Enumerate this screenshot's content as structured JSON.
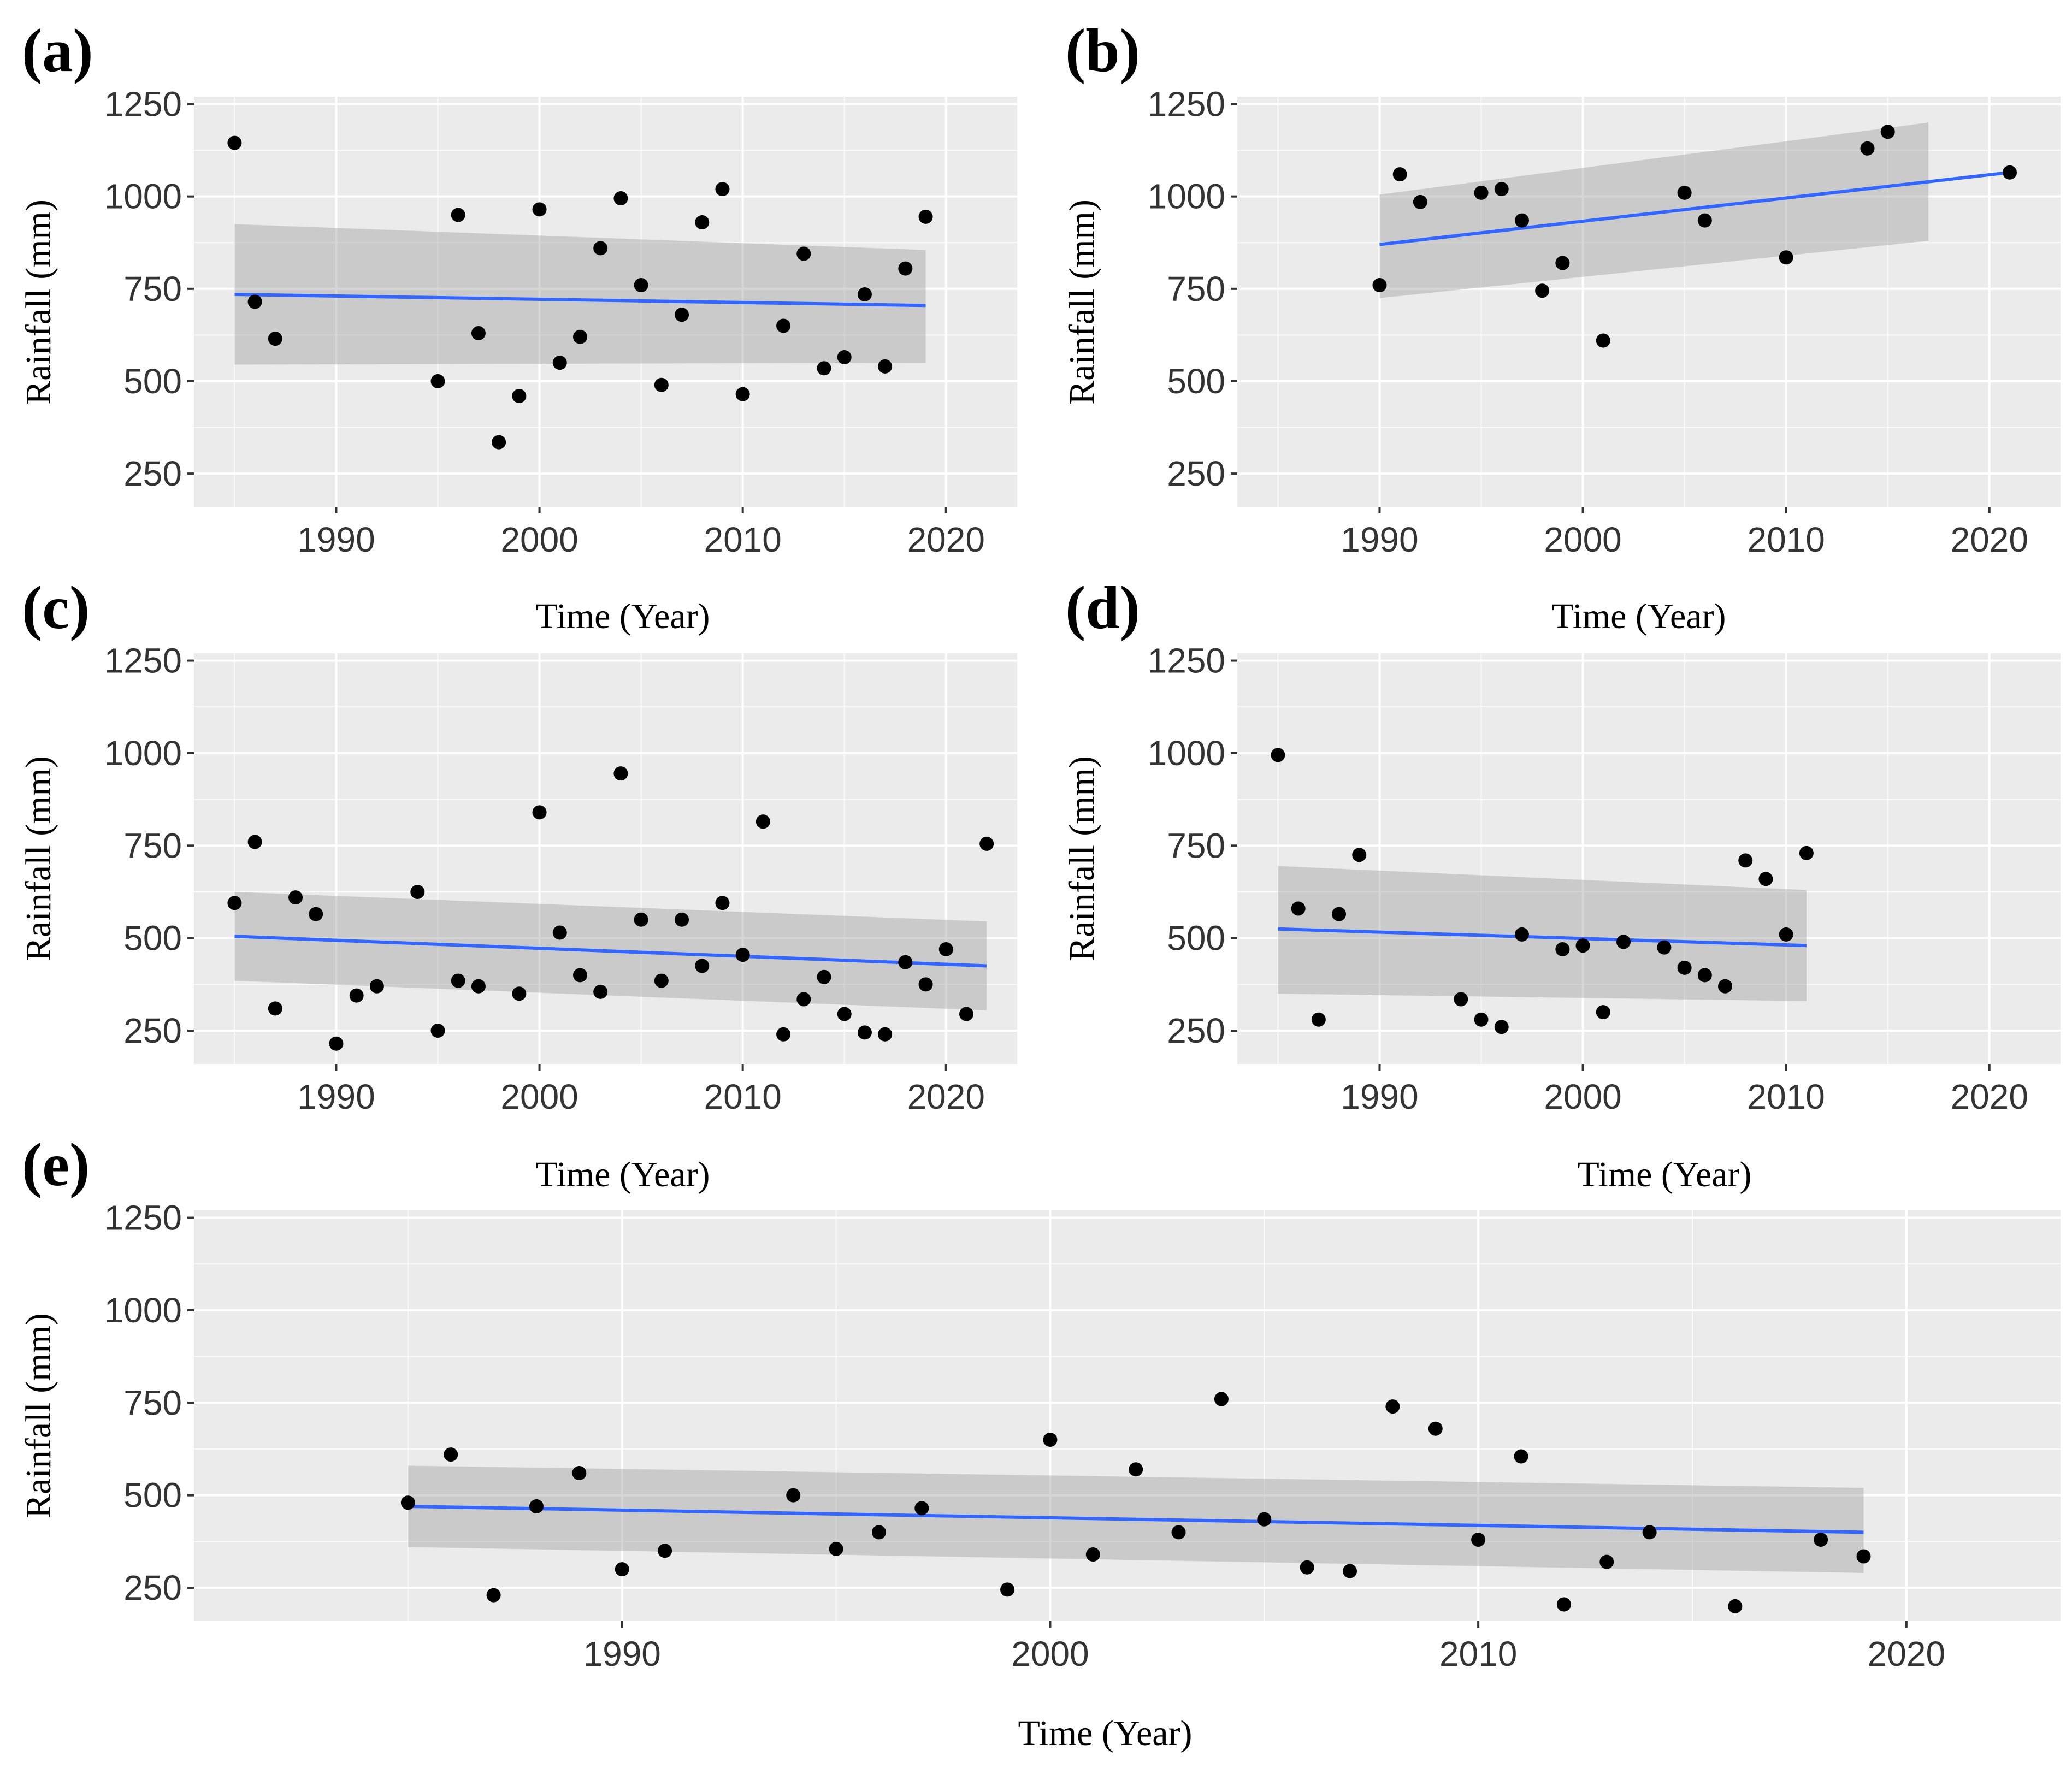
{
  "colors": {
    "panel_bg": "#ebebeb",
    "grid": "#ffffff",
    "trend": "#3366FF",
    "band": "#999999",
    "point": "#000000"
  },
  "chart_data": [
    {
      "panel": "(a)",
      "type": "scatter",
      "xlabel": "Time (Year)",
      "ylabel": "Rainfall (mm)",
      "xlim": [
        1983,
        2023.5
      ],
      "ylim": [
        160,
        1270
      ],
      "xticks": [
        1990,
        2000,
        2010,
        2020
      ],
      "yticks": [
        250,
        500,
        750,
        1000,
        1250
      ],
      "points": [
        [
          1985,
          1145
        ],
        [
          1986,
          715
        ],
        [
          1987,
          615
        ],
        [
          1995,
          500
        ],
        [
          1996,
          950
        ],
        [
          1997,
          630
        ],
        [
          1998,
          335
        ],
        [
          1999,
          460
        ],
        [
          2000,
          965
        ],
        [
          2001,
          550
        ],
        [
          2002,
          620
        ],
        [
          2003,
          860
        ],
        [
          2004,
          995
        ],
        [
          2005,
          760
        ],
        [
          2006,
          490
        ],
        [
          2007,
          680
        ],
        [
          2008,
          930
        ],
        [
          2009,
          1020
        ],
        [
          2010,
          465
        ],
        [
          2012,
          650
        ],
        [
          2013,
          845
        ],
        [
          2014,
          535
        ],
        [
          2015,
          565
        ],
        [
          2016,
          735
        ],
        [
          2017,
          540
        ],
        [
          2018,
          805
        ],
        [
          2019,
          945
        ]
      ],
      "trend": {
        "x": [
          1985,
          2019
        ],
        "y": [
          735,
          705
        ],
        "band_lower": [
          545,
          550
        ],
        "band_upper": [
          925,
          855
        ]
      }
    },
    {
      "panel": "(b)",
      "type": "scatter",
      "xlabel": "Time (Year)",
      "ylabel": "Rainfall (mm)",
      "xlim": [
        1983,
        2023.5
      ],
      "ylim": [
        160,
        1270
      ],
      "xticks": [
        1990,
        2000,
        2010,
        2020
      ],
      "yticks": [
        250,
        500,
        750,
        1000,
        1250
      ],
      "points": [
        [
          1990,
          760
        ],
        [
          1991,
          1060
        ],
        [
          1992,
          985
        ],
        [
          1995,
          1010
        ],
        [
          1996,
          1020
        ],
        [
          1997,
          935
        ],
        [
          1998,
          745
        ],
        [
          1999,
          820
        ],
        [
          2001,
          610
        ],
        [
          2005,
          1010
        ],
        [
          2006,
          935
        ],
        [
          2010,
          835
        ],
        [
          2014,
          1130
        ],
        [
          2015,
          1175
        ],
        [
          2021,
          1065
        ]
      ],
      "trend": {
        "x": [
          1990,
          2021
        ],
        "y": [
          870,
          1065
        ],
        "band_lower": [
          725,
          880
        ],
        "band_upper": [
          1005,
          1200
        ],
        "band_x": [
          1990,
          2017
        ]
      }
    },
    {
      "panel": "(c)",
      "type": "scatter",
      "xlabel": "Time (Year)",
      "ylabel": "Rainfall (mm)",
      "xlim": [
        1983,
        2023.5
      ],
      "ylim": [
        160,
        1270
      ],
      "xticks": [
        1990,
        2000,
        2010,
        2020
      ],
      "yticks": [
        250,
        500,
        750,
        1000,
        1250
      ],
      "points": [
        [
          1985,
          595
        ],
        [
          1986,
          760
        ],
        [
          1987,
          310
        ],
        [
          1988,
          610
        ],
        [
          1989,
          565
        ],
        [
          1990,
          215
        ],
        [
          1991,
          345
        ],
        [
          1992,
          370
        ],
        [
          1994,
          625
        ],
        [
          1995,
          250
        ],
        [
          1996,
          385
        ],
        [
          1997,
          370
        ],
        [
          1999,
          350
        ],
        [
          2000,
          840
        ],
        [
          2001,
          515
        ],
        [
          2002,
          400
        ],
        [
          2003,
          355
        ],
        [
          2004,
          945
        ],
        [
          2005,
          550
        ],
        [
          2006,
          385
        ],
        [
          2007,
          550
        ],
        [
          2008,
          425
        ],
        [
          2009,
          595
        ],
        [
          2010,
          455
        ],
        [
          2011,
          815
        ],
        [
          2012,
          240
        ],
        [
          2013,
          335
        ],
        [
          2014,
          395
        ],
        [
          2015,
          295
        ],
        [
          2016,
          245
        ],
        [
          2017,
          240
        ],
        [
          2018,
          435
        ],
        [
          2019,
          375
        ],
        [
          2020,
          470
        ],
        [
          2021,
          295
        ],
        [
          2022,
          755
        ]
      ],
      "trend": {
        "x": [
          1985,
          2022
        ],
        "y": [
          505,
          425
        ],
        "band_lower": [
          385,
          305
        ],
        "band_upper": [
          625,
          545
        ]
      }
    },
    {
      "panel": "(d)",
      "type": "scatter",
      "xlabel": "Time (Year)",
      "ylabel": "Rainfall (mm)",
      "xlim": [
        1983,
        2023.5
      ],
      "ylim": [
        160,
        1270
      ],
      "xticks": [
        1990,
        2000,
        2010,
        2020
      ],
      "yticks": [
        250,
        500,
        750,
        1000,
        1250
      ],
      "points": [
        [
          1985,
          995
        ],
        [
          1986,
          580
        ],
        [
          1987,
          280
        ],
        [
          1988,
          565
        ],
        [
          1989,
          725
        ],
        [
          1994,
          335
        ],
        [
          1995,
          280
        ],
        [
          1996,
          260
        ],
        [
          1997,
          510
        ],
        [
          1999,
          470
        ],
        [
          2000,
          480
        ],
        [
          2001,
          300
        ],
        [
          2002,
          490
        ],
        [
          2004,
          475
        ],
        [
          2005,
          420
        ],
        [
          2006,
          400
        ],
        [
          2007,
          370
        ],
        [
          2008,
          710
        ],
        [
          2009,
          660
        ],
        [
          2010,
          510
        ],
        [
          2011,
          730
        ]
      ],
      "trend": {
        "x": [
          1985,
          2011
        ],
        "y": [
          525,
          480
        ],
        "band_lower": [
          350,
          330
        ],
        "band_upper": [
          695,
          630
        ]
      }
    },
    {
      "panel": "(e)",
      "type": "scatter",
      "xlabel": "Time (Year)",
      "ylabel": "Rainfall (mm)",
      "xlim": [
        1980,
        2023.6
      ],
      "ylim": [
        160,
        1270
      ],
      "xticks": [
        1990,
        2000,
        2010,
        2020
      ],
      "yticks": [
        250,
        500,
        750,
        1000,
        1250
      ],
      "points": [
        [
          1985,
          480
        ],
        [
          1986,
          610
        ],
        [
          1987,
          230
        ],
        [
          1988,
          470
        ],
        [
          1989,
          560
        ],
        [
          1990,
          300
        ],
        [
          1991,
          350
        ],
        [
          1994,
          500
        ],
        [
          1995,
          355
        ],
        [
          1996,
          400
        ],
        [
          1997,
          465
        ],
        [
          1999,
          245
        ],
        [
          2000,
          650
        ],
        [
          2001,
          340
        ],
        [
          2002,
          570
        ],
        [
          2003,
          400
        ],
        [
          2004,
          760
        ],
        [
          2005,
          435
        ],
        [
          2006,
          305
        ],
        [
          2007,
          295
        ],
        [
          2008,
          740
        ],
        [
          2009,
          680
        ],
        [
          2010,
          380
        ],
        [
          2011,
          605
        ],
        [
          2012,
          205
        ],
        [
          2013,
          320
        ],
        [
          2014,
          400
        ],
        [
          2016,
          200
        ],
        [
          2018,
          380
        ],
        [
          2019,
          335
        ]
      ],
      "trend": {
        "x": [
          1985,
          2019
        ],
        "y": [
          470,
          400
        ],
        "band_lower": [
          360,
          290
        ],
        "band_upper": [
          580,
          520
        ]
      }
    }
  ]
}
